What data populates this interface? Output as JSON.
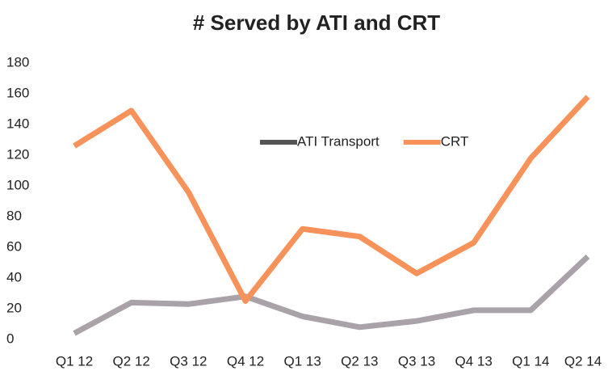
{
  "chart_data": {
    "type": "line",
    "title": "# Served by ATI and CRT",
    "categories": [
      "Q1 12",
      "Q2 12",
      "Q3 12",
      "Q4 12",
      "Q1 13",
      "Q2 13",
      "Q3 13",
      "Q4 13",
      "Q1 14",
      "Q2 14"
    ],
    "series": [
      {
        "name": "ATI Transport",
        "color": "#a9a3a9",
        "values": [
          4,
          24,
          23,
          28,
          15,
          8,
          12,
          19,
          19,
          54
        ]
      },
      {
        "name": "CRT",
        "color": "#f7935a",
        "values": [
          126,
          149,
          96,
          25,
          72,
          67,
          43,
          63,
          118,
          158
        ]
      }
    ],
    "ylim": [
      0,
      180
    ],
    "yticks": [
      0,
      20,
      40,
      60,
      80,
      100,
      120,
      140,
      160,
      180
    ],
    "grid": false,
    "legend": "top"
  }
}
